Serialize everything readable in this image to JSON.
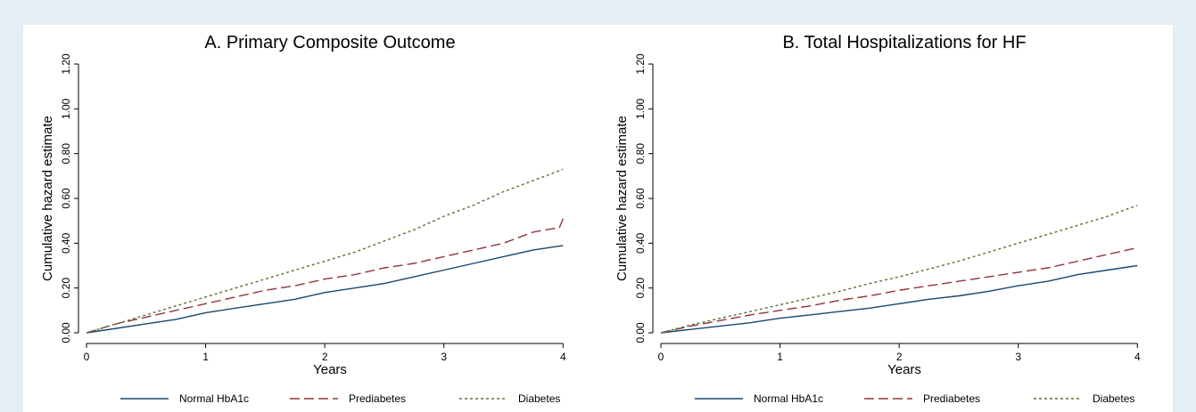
{
  "colors": {
    "background": "#e3eef5",
    "panel": "#ffffff",
    "normal": "#1a476f",
    "prediabetes": "#90353b",
    "diabetes": "#55752f"
  },
  "legend_position": "bottom",
  "chart_data": [
    {
      "type": "line",
      "title": "A. Primary Composite Outcome",
      "xlabel": "Years",
      "ylabel": "Cumulative hazard estimate",
      "xlim": [
        0,
        4.08
      ],
      "ylim": [
        0,
        1.2
      ],
      "xticks": [
        "0",
        "1",
        "2",
        "3",
        "4"
      ],
      "yticks": [
        "0.00",
        "0.20",
        "0.40",
        "0.60",
        "0.80",
        "1.00",
        "1.20"
      ],
      "grid": false,
      "series": [
        {
          "name": "Normal HbA1c",
          "style": "solid",
          "x": [
            0,
            0.25,
            0.5,
            0.75,
            1.0,
            1.25,
            1.5,
            1.75,
            2.0,
            2.25,
            2.5,
            2.75,
            3.0,
            3.25,
            3.5,
            3.75,
            4.0
          ],
          "y": [
            0,
            0.02,
            0.04,
            0.06,
            0.09,
            0.11,
            0.13,
            0.15,
            0.18,
            0.2,
            0.22,
            0.25,
            0.28,
            0.31,
            0.34,
            0.37,
            0.39
          ]
        },
        {
          "name": "Prediabetes",
          "style": "dash",
          "x": [
            0,
            0.25,
            0.5,
            0.75,
            1.0,
            1.25,
            1.5,
            1.75,
            2.0,
            2.25,
            2.5,
            2.75,
            3.0,
            3.25,
            3.5,
            3.75,
            3.97,
            4.0
          ],
          "y": [
            0,
            0.04,
            0.07,
            0.1,
            0.13,
            0.16,
            0.19,
            0.21,
            0.24,
            0.26,
            0.29,
            0.31,
            0.34,
            0.37,
            0.4,
            0.45,
            0.47,
            0.51
          ]
        },
        {
          "name": "Diabetes",
          "style": "dot",
          "x": [
            0,
            0.25,
            0.5,
            0.75,
            1.0,
            1.25,
            1.5,
            1.75,
            2.0,
            2.25,
            2.5,
            2.75,
            3.0,
            3.25,
            3.5,
            3.75,
            4.0
          ],
          "y": [
            0,
            0.04,
            0.08,
            0.12,
            0.16,
            0.2,
            0.24,
            0.28,
            0.32,
            0.36,
            0.41,
            0.46,
            0.52,
            0.57,
            0.63,
            0.68,
            0.73
          ]
        }
      ]
    },
    {
      "type": "line",
      "title": "B. Total Hospitalizations for HF",
      "xlabel": "Years",
      "ylabel": "Cumulative hazard estimate",
      "xlim": [
        0,
        4.08
      ],
      "ylim": [
        0,
        1.2
      ],
      "xticks": [
        "0",
        "1",
        "2",
        "3",
        "4"
      ],
      "yticks": [
        "0.00",
        "0.20",
        "0.40",
        "0.60",
        "0.80",
        "1.00",
        "1.20"
      ],
      "grid": false,
      "series": [
        {
          "name": "Normal HbA1c",
          "style": "solid",
          "x": [
            0,
            0.25,
            0.5,
            0.75,
            1.0,
            1.25,
            1.5,
            1.75,
            2.0,
            2.25,
            2.5,
            2.75,
            3.0,
            3.25,
            3.5,
            3.75,
            4.0
          ],
          "y": [
            0,
            0.015,
            0.03,
            0.045,
            0.065,
            0.08,
            0.095,
            0.11,
            0.13,
            0.15,
            0.165,
            0.185,
            0.21,
            0.23,
            0.26,
            0.28,
            0.3
          ]
        },
        {
          "name": "Prediabetes",
          "style": "dash",
          "x": [
            0,
            0.25,
            0.5,
            0.75,
            1.0,
            1.25,
            1.5,
            1.75,
            2.0,
            2.25,
            2.5,
            2.75,
            3.0,
            3.25,
            3.5,
            3.75,
            4.0
          ],
          "y": [
            0,
            0.03,
            0.055,
            0.08,
            0.1,
            0.12,
            0.145,
            0.165,
            0.19,
            0.21,
            0.23,
            0.25,
            0.27,
            0.29,
            0.32,
            0.35,
            0.38
          ]
        },
        {
          "name": "Diabetes",
          "style": "dot",
          "x": [
            0,
            0.25,
            0.5,
            0.75,
            1.0,
            1.25,
            1.5,
            1.75,
            2.0,
            2.25,
            2.5,
            2.75,
            3.0,
            3.25,
            3.5,
            3.75,
            4.0
          ],
          "y": [
            0,
            0.035,
            0.065,
            0.095,
            0.125,
            0.155,
            0.185,
            0.22,
            0.25,
            0.285,
            0.32,
            0.36,
            0.4,
            0.44,
            0.48,
            0.52,
            0.57
          ]
        }
      ]
    }
  ]
}
